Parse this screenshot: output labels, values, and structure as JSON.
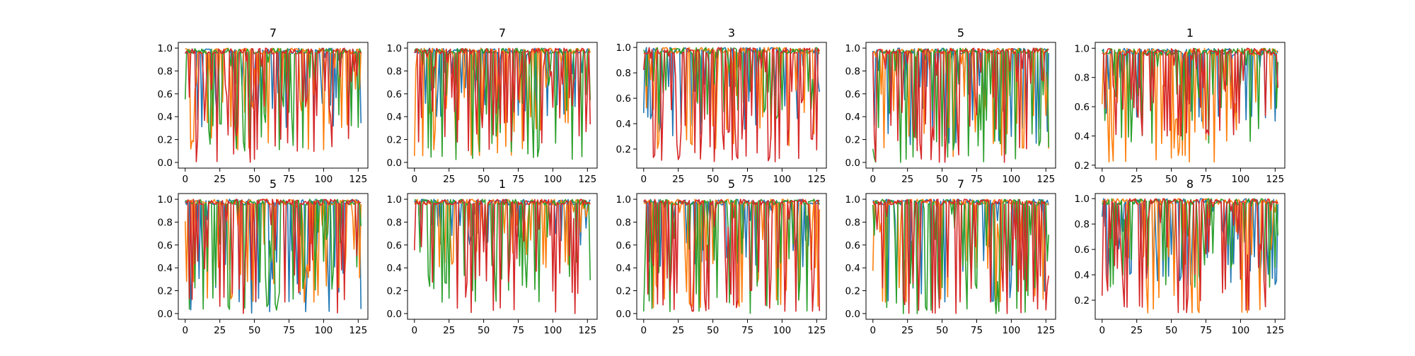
{
  "figure": {
    "series_colors": [
      "#1f77b4",
      "#ff7f0e",
      "#2ca02c",
      "#d62728"
    ]
  },
  "chart_data": [
    {
      "type": "line",
      "title": "7",
      "xticks": [
        0,
        25,
        50,
        75,
        100,
        125
      ],
      "yticks": [
        0.0,
        0.2,
        0.4,
        0.6,
        0.8,
        1.0
      ],
      "xlim": [
        -5,
        132
      ],
      "ylim": [
        -0.05,
        1.05
      ],
      "grid": false,
      "x": {
        "start": 0,
        "end": 127,
        "step": 1
      },
      "n_points": 128,
      "series": [
        {
          "color": "#1f77b4",
          "low": 0.3,
          "dip_rate": 0.3
        },
        {
          "color": "#ff7f0e",
          "low": 0.1,
          "dip_rate": 0.3
        },
        {
          "color": "#2ca02c",
          "low": 0.1,
          "dip_rate": 0.3
        },
        {
          "color": "#d62728",
          "low": 0.0,
          "dip_rate": 0.35
        }
      ]
    },
    {
      "type": "line",
      "title": "7",
      "xticks": [
        0,
        25,
        50,
        75,
        100,
        125
      ],
      "yticks": [
        0.0,
        0.2,
        0.4,
        0.6,
        0.8,
        1.0
      ],
      "xlim": [
        -5,
        132
      ],
      "ylim": [
        -0.05,
        1.05
      ],
      "grid": false,
      "x": {
        "start": 0,
        "end": 127,
        "step": 1
      },
      "n_points": 128,
      "series": [
        {
          "color": "#1f77b4",
          "low": 0.4,
          "dip_rate": 0.25
        },
        {
          "color": "#ff7f0e",
          "low": 0.05,
          "dip_rate": 0.3
        },
        {
          "color": "#2ca02c",
          "low": 0.02,
          "dip_rate": 0.3
        },
        {
          "color": "#d62728",
          "low": 0.1,
          "dip_rate": 0.35
        }
      ]
    },
    {
      "type": "line",
      "title": "3",
      "xticks": [
        0,
        25,
        50,
        75,
        100,
        125
      ],
      "yticks": [
        0.2,
        0.4,
        0.6,
        0.8,
        1.0
      ],
      "xlim": [
        -5,
        132
      ],
      "ylim": [
        0.05,
        1.04
      ],
      "grid": false,
      "x": {
        "start": 0,
        "end": 127,
        "step": 1
      },
      "n_points": 128,
      "series": [
        {
          "color": "#1f77b4",
          "low": 0.3,
          "dip_rate": 0.25
        },
        {
          "color": "#ff7f0e",
          "low": 0.2,
          "dip_rate": 0.3
        },
        {
          "color": "#2ca02c",
          "low": 0.4,
          "dip_rate": 0.3
        },
        {
          "color": "#d62728",
          "low": 0.1,
          "dip_rate": 0.35
        }
      ]
    },
    {
      "type": "line",
      "title": "5",
      "xticks": [
        0,
        25,
        50,
        75,
        100,
        125
      ],
      "yticks": [
        0.0,
        0.2,
        0.4,
        0.6,
        0.8,
        1.0
      ],
      "xlim": [
        -5,
        132
      ],
      "ylim": [
        -0.05,
        1.05
      ],
      "grid": false,
      "x": {
        "start": 0,
        "end": 127,
        "step": 1
      },
      "n_points": 128,
      "series": [
        {
          "color": "#1f77b4",
          "low": 0.15,
          "dip_rate": 0.3
        },
        {
          "color": "#ff7f0e",
          "low": 0.05,
          "dip_rate": 0.3
        },
        {
          "color": "#2ca02c",
          "low": 0.0,
          "dip_rate": 0.3
        },
        {
          "color": "#d62728",
          "low": 0.0,
          "dip_rate": 0.35
        }
      ]
    },
    {
      "type": "line",
      "title": "1",
      "xticks": [
        0,
        25,
        50,
        75,
        100,
        125
      ],
      "yticks": [
        0.2,
        0.4,
        0.6,
        0.8,
        1.0
      ],
      "xlim": [
        -5,
        132
      ],
      "ylim": [
        0.18,
        1.04
      ],
      "grid": false,
      "x": {
        "start": 0,
        "end": 127,
        "step": 1
      },
      "n_points": 128,
      "series": [
        {
          "color": "#1f77b4",
          "low": 0.5,
          "dip_rate": 0.25
        },
        {
          "color": "#ff7f0e",
          "low": 0.22,
          "dip_rate": 0.3
        },
        {
          "color": "#2ca02c",
          "low": 0.35,
          "dip_rate": 0.3
        },
        {
          "color": "#d62728",
          "low": 0.4,
          "dip_rate": 0.35
        }
      ]
    },
    {
      "type": "line",
      "title": "5",
      "xticks": [
        0,
        25,
        50,
        75,
        100,
        125
      ],
      "yticks": [
        0.0,
        0.2,
        0.4,
        0.6,
        0.8,
        1.0
      ],
      "xlim": [
        -5,
        132
      ],
      "ylim": [
        -0.05,
        1.05
      ],
      "grid": false,
      "x": {
        "start": 0,
        "end": 127,
        "step": 1
      },
      "n_points": 128,
      "series": [
        {
          "color": "#1f77b4",
          "low": 0.0,
          "dip_rate": 0.3
        },
        {
          "color": "#ff7f0e",
          "low": 0.1,
          "dip_rate": 0.3
        },
        {
          "color": "#2ca02c",
          "low": 0.03,
          "dip_rate": 0.3
        },
        {
          "color": "#d62728",
          "low": 0.0,
          "dip_rate": 0.35
        }
      ]
    },
    {
      "type": "line",
      "title": "1",
      "xticks": [
        0,
        25,
        50,
        75,
        100,
        125
      ],
      "yticks": [
        0.0,
        0.2,
        0.4,
        0.6,
        0.8,
        1.0
      ],
      "xlim": [
        -5,
        132
      ],
      "ylim": [
        -0.05,
        1.05
      ],
      "grid": false,
      "x": {
        "start": 0,
        "end": 127,
        "step": 1
      },
      "n_points": 128,
      "series": [
        {
          "color": "#1f77b4",
          "low": 0.6,
          "dip_rate": 0.2
        },
        {
          "color": "#ff7f0e",
          "low": 0.4,
          "dip_rate": 0.2
        },
        {
          "color": "#2ca02c",
          "low": 0.1,
          "dip_rate": 0.2
        },
        {
          "color": "#d62728",
          "low": 0.0,
          "dip_rate": 0.25
        }
      ]
    },
    {
      "type": "line",
      "title": "5",
      "xticks": [
        0,
        25,
        50,
        75,
        100,
        125
      ],
      "yticks": [
        0.0,
        0.2,
        0.4,
        0.6,
        0.8,
        1.0
      ],
      "xlim": [
        -5,
        132
      ],
      "ylim": [
        -0.05,
        1.05
      ],
      "grid": false,
      "x": {
        "start": 0,
        "end": 127,
        "step": 1
      },
      "n_points": 128,
      "series": [
        {
          "color": "#1f77b4",
          "low": 0.4,
          "dip_rate": 0.3
        },
        {
          "color": "#ff7f0e",
          "low": 0.05,
          "dip_rate": 0.3
        },
        {
          "color": "#2ca02c",
          "low": 0.0,
          "dip_rate": 0.3
        },
        {
          "color": "#d62728",
          "low": 0.02,
          "dip_rate": 0.35
        }
      ]
    },
    {
      "type": "line",
      "title": "7",
      "xticks": [
        0,
        25,
        50,
        75,
        100,
        125
      ],
      "yticks": [
        0.0,
        0.2,
        0.4,
        0.6,
        0.8,
        1.0
      ],
      "xlim": [
        -5,
        132
      ],
      "ylim": [
        -0.05,
        1.05
      ],
      "grid": false,
      "x": {
        "start": 0,
        "end": 127,
        "step": 1
      },
      "n_points": 128,
      "series": [
        {
          "color": "#1f77b4",
          "low": 0.1,
          "dip_rate": 0.3
        },
        {
          "color": "#ff7f0e",
          "low": 0.1,
          "dip_rate": 0.3
        },
        {
          "color": "#2ca02c",
          "low": 0.0,
          "dip_rate": 0.3
        },
        {
          "color": "#d62728",
          "low": 0.0,
          "dip_rate": 0.35
        }
      ]
    },
    {
      "type": "line",
      "title": "8",
      "xticks": [
        0,
        25,
        50,
        75,
        100,
        125
      ],
      "yticks": [
        0.2,
        0.4,
        0.6,
        0.8,
        1.0
      ],
      "xlim": [
        -5,
        132
      ],
      "ylim": [
        0.05,
        1.04
      ],
      "grid": false,
      "x": {
        "start": 0,
        "end": 127,
        "step": 1
      },
      "n_points": 128,
      "series": [
        {
          "color": "#1f77b4",
          "low": 0.3,
          "dip_rate": 0.3
        },
        {
          "color": "#ff7f0e",
          "low": 0.1,
          "dip_rate": 0.3
        },
        {
          "color": "#2ca02c",
          "low": 0.3,
          "dip_rate": 0.3
        },
        {
          "color": "#d62728",
          "low": 0.1,
          "dip_rate": 0.35
        }
      ]
    }
  ]
}
